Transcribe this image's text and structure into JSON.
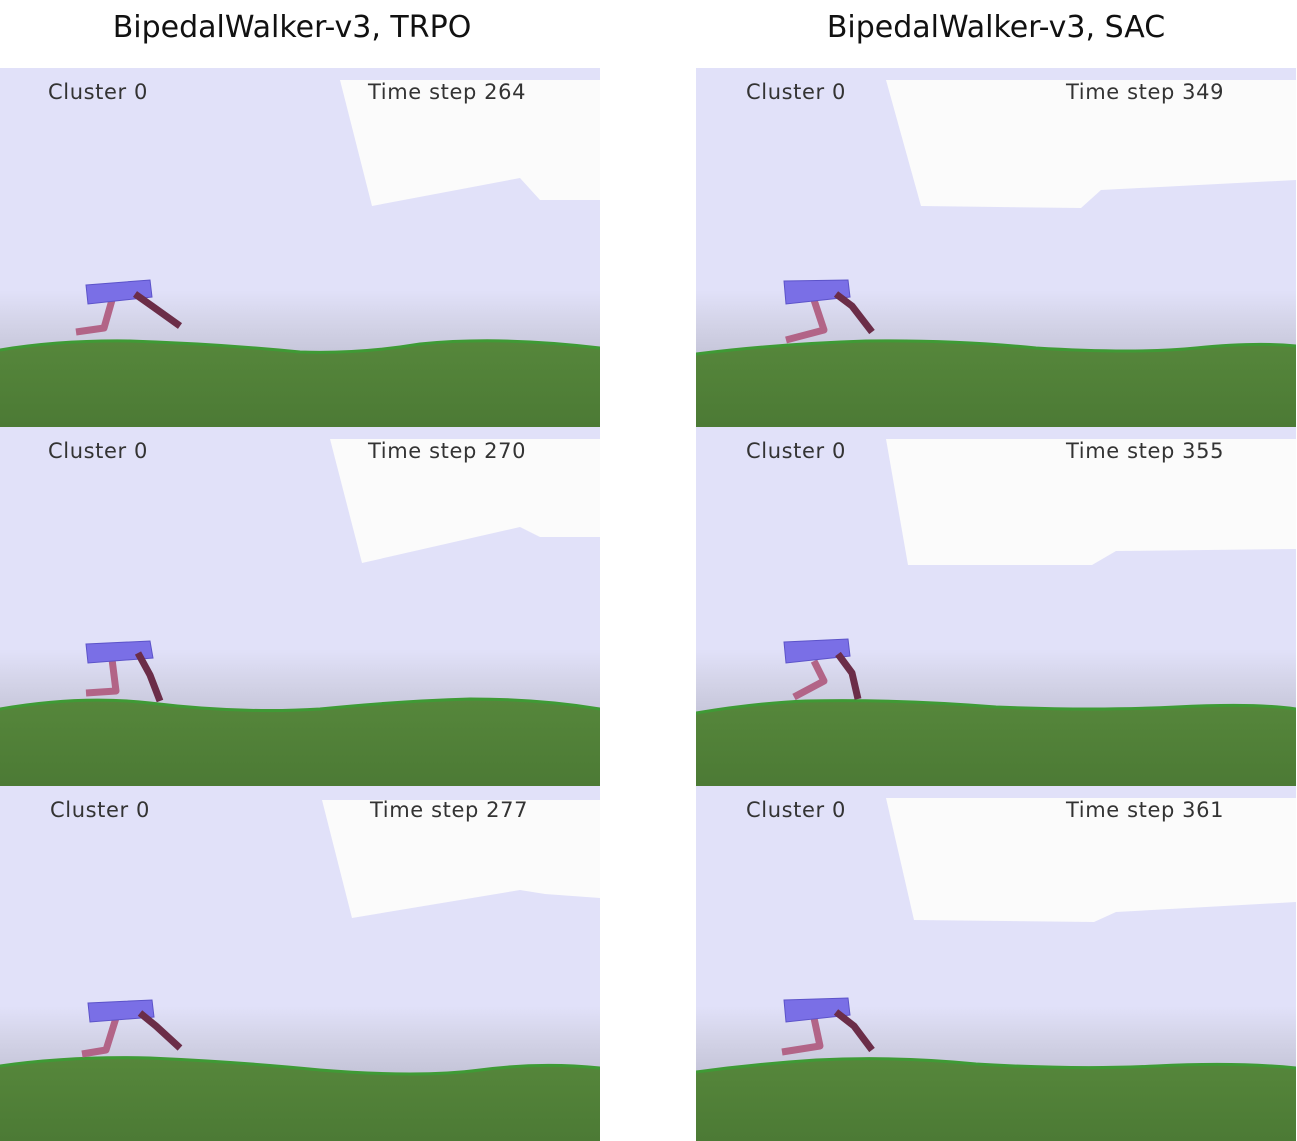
{
  "columns": [
    {
      "title": "BipedalWalker-v3, TRPO",
      "frames": [
        {
          "cluster": "Cluster 0",
          "time_step": "Time step 264"
        },
        {
          "cluster": "Cluster 0",
          "time_step": "Time step 270"
        },
        {
          "cluster": "Cluster 0",
          "time_step": "Time step 277"
        }
      ]
    },
    {
      "title": "BipedalWalker-v3, SAC",
      "frames": [
        {
          "cluster": "Cluster 0",
          "time_step": "Time step 349"
        },
        {
          "cluster": "Cluster 0",
          "time_step": "Time step 355"
        },
        {
          "cluster": "Cluster 0",
          "time_step": "Time step 361"
        }
      ]
    }
  ],
  "colors": {
    "sky": "#e1e1f9",
    "cloud": "#fbfbfb",
    "ground": "#4c7a35",
    "ground_edge": "#3f9a35",
    "hull": "#7a6fe6",
    "leg_front": "#6b2d48",
    "leg_back": "#b26487"
  }
}
